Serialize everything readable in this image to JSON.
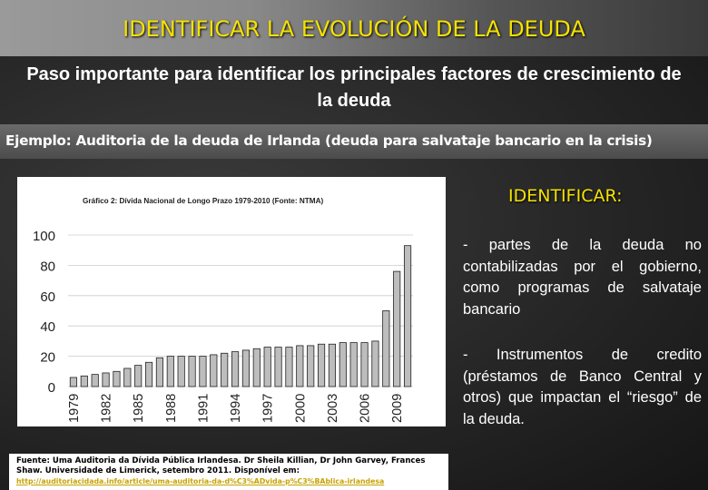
{
  "slide": {
    "title": "IDENTIFICAR LA EVOLUCIÓN DE LA DEUDA",
    "subtitle": "Paso importante para identificar los principales factores de crescimiento de la deuda",
    "example": "Ejemplo: Auditoria de la deuda de Irlanda (deuda para salvataje bancario en la crisis)",
    "identificar_heading": "IDENTIFICAR:",
    "bullets": [
      "- partes de la deuda no contabilizadas por el gobierno, como programas de salvataje bancario",
      "- Instrumentos de credito (préstamos de Banco Central y otros)  que impactan el “riesgo” de la deuda."
    ],
    "source": {
      "text": "Fuente: Uma Auditoria da Dívida Pública Irlandesa. Dr Sheila Killian, Dr John Garvey, Frances Shaw.  Universidade de Limerick, setembro 2011. Disponível em:",
      "url": "http://auditoriacidada.info/article/uma-auditoria-da-d%C3%ADvida-p%C3%BAblica-irlandesa"
    },
    "colors": {
      "title": "#f5e200",
      "bar_fill": "#bdbdbd",
      "bar_stroke": "#222222"
    }
  },
  "chart_data": {
    "type": "bar",
    "title": "Gráfico 2: Dívida Nacional de Longo Prazo 1979-2010 (Fonte: NTMA)",
    "xlabel": "",
    "ylabel": "",
    "ylim": [
      0,
      100
    ],
    "yticks": [
      "0",
      "20",
      "40",
      "60",
      "80",
      "100"
    ],
    "xtick_labels": [
      "1979",
      "1982",
      "1985",
      "1988",
      "1991",
      "1994",
      "1997",
      "2000",
      "2003",
      "2006",
      "2009"
    ],
    "categories": [
      "1979",
      "1980",
      "1981",
      "1982",
      "1983",
      "1984",
      "1985",
      "1986",
      "1987",
      "1988",
      "1989",
      "1990",
      "1991",
      "1992",
      "1993",
      "1994",
      "1995",
      "1996",
      "1997",
      "1998",
      "1999",
      "2000",
      "2001",
      "2002",
      "2003",
      "2004",
      "2005",
      "2006",
      "2007",
      "2008",
      "2009",
      "2010"
    ],
    "values": [
      6,
      7,
      8,
      9,
      10,
      12,
      14,
      16,
      19,
      20,
      20,
      20,
      20,
      21,
      22,
      23,
      24,
      25,
      26,
      26,
      26,
      27,
      27,
      28,
      28,
      29,
      29,
      29,
      30,
      50,
      76,
      93
    ],
    "grid": true
  }
}
